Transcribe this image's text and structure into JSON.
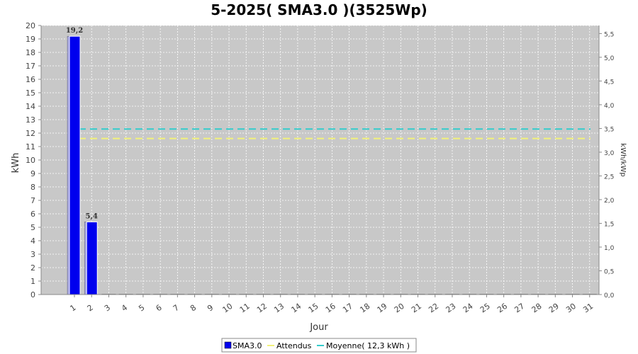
{
  "chart_data": {
    "type": "bar",
    "title": "5-2025( SMA3.0 )(3525Wp)",
    "xlabel": "Jour",
    "ylabel": "kWh",
    "ylabel_right": "kWh/kWp",
    "ylim": [
      0,
      20
    ],
    "ylim_right": [
      0,
      5.67
    ],
    "yticks": [
      "0",
      "1",
      "2",
      "3",
      "4",
      "5",
      "6",
      "7",
      "8",
      "9",
      "10",
      "11",
      "12",
      "13",
      "14",
      "15",
      "16",
      "17",
      "18",
      "19",
      "20"
    ],
    "yticks_right": [
      "0,0",
      "0,5",
      "1,0",
      "1,5",
      "2,0",
      "2,5",
      "3,0",
      "3,5",
      "4,0",
      "4,5",
      "5,0",
      "5,5"
    ],
    "categories": [
      "1",
      "2",
      "3",
      "4",
      "5",
      "6",
      "7",
      "8",
      "9",
      "10",
      "11",
      "12",
      "13",
      "14",
      "15",
      "16",
      "17",
      "18",
      "19",
      "20",
      "21",
      "22",
      "23",
      "24",
      "25",
      "26",
      "27",
      "28",
      "29",
      "30",
      "31"
    ],
    "series": [
      {
        "name": "SMA3.0",
        "values": [
          19.2,
          5.4,
          0,
          0,
          0,
          0,
          0,
          0,
          0,
          0,
          0,
          0,
          0,
          0,
          0,
          0,
          0,
          0,
          0,
          0,
          0,
          0,
          0,
          0,
          0,
          0,
          0,
          0,
          0,
          0,
          0
        ],
        "color": "#0000ee"
      }
    ],
    "data_labels": [
      "19,2",
      "5,4"
    ],
    "lines": [
      {
        "name": "Attendus",
        "value": 11.6,
        "color": "#f2f27a"
      },
      {
        "name": "Moyenne( 12,3 kWh )",
        "value": 12.3,
        "color": "#33cccc"
      }
    ],
    "grid": true,
    "legend_placement": "bottom"
  }
}
